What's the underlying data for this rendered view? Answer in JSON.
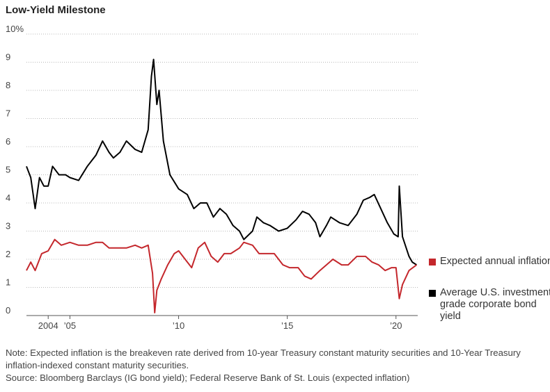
{
  "chart_data": {
    "type": "line",
    "title": "Low-Yield Milestone",
    "y_axis": {
      "ylim": [
        0,
        10
      ],
      "ticks": [
        0,
        1,
        2,
        3,
        4,
        5,
        6,
        7,
        8,
        9,
        10
      ],
      "tick_labels": [
        "0",
        "1",
        "2",
        "3",
        "4",
        "5",
        "6",
        "7",
        "8",
        "9",
        "10%"
      ]
    },
    "x_axis": {
      "xlim": [
        2003.0,
        2021.0
      ],
      "ticks": [
        2004,
        2005,
        2010,
        2015,
        2020
      ],
      "tick_labels": [
        "2004",
        "’05",
        "’10",
        "’15",
        "’20"
      ]
    },
    "grid": "horizontal dotted",
    "legend_position": "right",
    "series": [
      {
        "name": "Average U.S. investment-grade corporate bond yield",
        "color": "#000000",
        "points": [
          [
            2003.0,
            5.3
          ],
          [
            2003.2,
            4.9
          ],
          [
            2003.4,
            3.8
          ],
          [
            2003.6,
            4.9
          ],
          [
            2003.8,
            4.6
          ],
          [
            2004.0,
            4.6
          ],
          [
            2004.2,
            5.3
          ],
          [
            2004.5,
            5.0
          ],
          [
            2004.8,
            5.0
          ],
          [
            2005.0,
            4.9
          ],
          [
            2005.4,
            4.8
          ],
          [
            2005.8,
            5.3
          ],
          [
            2006.2,
            5.7
          ],
          [
            2006.5,
            6.2
          ],
          [
            2006.8,
            5.8
          ],
          [
            2007.0,
            5.6
          ],
          [
            2007.3,
            5.8
          ],
          [
            2007.6,
            6.2
          ],
          [
            2008.0,
            5.9
          ],
          [
            2008.3,
            5.8
          ],
          [
            2008.6,
            6.6
          ],
          [
            2008.75,
            8.5
          ],
          [
            2008.85,
            9.1
          ],
          [
            2009.0,
            7.5
          ],
          [
            2009.1,
            8.0
          ],
          [
            2009.3,
            6.2
          ],
          [
            2009.6,
            5.0
          ],
          [
            2010.0,
            4.5
          ],
          [
            2010.4,
            4.3
          ],
          [
            2010.7,
            3.8
          ],
          [
            2011.0,
            4.0
          ],
          [
            2011.3,
            4.0
          ],
          [
            2011.6,
            3.5
          ],
          [
            2011.9,
            3.8
          ],
          [
            2012.2,
            3.6
          ],
          [
            2012.5,
            3.2
          ],
          [
            2012.8,
            3.0
          ],
          [
            2013.0,
            2.7
          ],
          [
            2013.4,
            3.0
          ],
          [
            2013.6,
            3.5
          ],
          [
            2013.9,
            3.3
          ],
          [
            2014.2,
            3.2
          ],
          [
            2014.6,
            3.0
          ],
          [
            2015.0,
            3.1
          ],
          [
            2015.4,
            3.4
          ],
          [
            2015.7,
            3.7
          ],
          [
            2016.0,
            3.6
          ],
          [
            2016.3,
            3.3
          ],
          [
            2016.5,
            2.8
          ],
          [
            2016.8,
            3.2
          ],
          [
            2017.0,
            3.5
          ],
          [
            2017.4,
            3.3
          ],
          [
            2017.8,
            3.2
          ],
          [
            2018.2,
            3.6
          ],
          [
            2018.5,
            4.1
          ],
          [
            2018.8,
            4.2
          ],
          [
            2019.0,
            4.3
          ],
          [
            2019.3,
            3.8
          ],
          [
            2019.6,
            3.3
          ],
          [
            2019.9,
            2.9
          ],
          [
            2020.1,
            2.8
          ],
          [
            2020.15,
            4.6
          ],
          [
            2020.3,
            2.8
          ],
          [
            2020.6,
            2.1
          ],
          [
            2020.75,
            1.9
          ],
          [
            2020.95,
            1.8
          ]
        ]
      },
      {
        "name": "Expected annual inflation",
        "color": "#c4272c",
        "points": [
          [
            2003.0,
            1.6
          ],
          [
            2003.2,
            1.9
          ],
          [
            2003.4,
            1.6
          ],
          [
            2003.7,
            2.2
          ],
          [
            2004.0,
            2.3
          ],
          [
            2004.3,
            2.7
          ],
          [
            2004.6,
            2.5
          ],
          [
            2005.0,
            2.6
          ],
          [
            2005.4,
            2.5
          ],
          [
            2005.8,
            2.5
          ],
          [
            2006.2,
            2.6
          ],
          [
            2006.5,
            2.6
          ],
          [
            2006.8,
            2.4
          ],
          [
            2007.2,
            2.4
          ],
          [
            2007.6,
            2.4
          ],
          [
            2008.0,
            2.5
          ],
          [
            2008.3,
            2.4
          ],
          [
            2008.6,
            2.5
          ],
          [
            2008.8,
            1.5
          ],
          [
            2008.9,
            0.1
          ],
          [
            2009.0,
            0.9
          ],
          [
            2009.2,
            1.3
          ],
          [
            2009.5,
            1.8
          ],
          [
            2009.8,
            2.2
          ],
          [
            2010.0,
            2.3
          ],
          [
            2010.3,
            2.0
          ],
          [
            2010.6,
            1.7
          ],
          [
            2010.9,
            2.4
          ],
          [
            2011.2,
            2.6
          ],
          [
            2011.5,
            2.1
          ],
          [
            2011.8,
            1.9
          ],
          [
            2012.1,
            2.2
          ],
          [
            2012.4,
            2.2
          ],
          [
            2012.8,
            2.4
          ],
          [
            2013.0,
            2.6
          ],
          [
            2013.4,
            2.5
          ],
          [
            2013.7,
            2.2
          ],
          [
            2014.0,
            2.2
          ],
          [
            2014.4,
            2.2
          ],
          [
            2014.8,
            1.8
          ],
          [
            2015.1,
            1.7
          ],
          [
            2015.5,
            1.7
          ],
          [
            2015.8,
            1.4
          ],
          [
            2016.1,
            1.3
          ],
          [
            2016.5,
            1.6
          ],
          [
            2016.8,
            1.8
          ],
          [
            2017.1,
            2.0
          ],
          [
            2017.5,
            1.8
          ],
          [
            2017.8,
            1.8
          ],
          [
            2018.2,
            2.1
          ],
          [
            2018.6,
            2.1
          ],
          [
            2018.9,
            1.9
          ],
          [
            2019.2,
            1.8
          ],
          [
            2019.5,
            1.6
          ],
          [
            2019.8,
            1.7
          ],
          [
            2020.0,
            1.7
          ],
          [
            2020.15,
            0.6
          ],
          [
            2020.3,
            1.1
          ],
          [
            2020.6,
            1.6
          ],
          [
            2020.95,
            1.8
          ]
        ]
      }
    ]
  },
  "legend": {
    "items": [
      {
        "label": "Expected annual inflation",
        "color": "#c4272c"
      },
      {
        "label": "Average U.S. investment-grade corporate bond yield",
        "color": "#000000"
      }
    ]
  },
  "notes": {
    "note": "Note: Expected inflation is the breakeven rate derived from 10-year Treasury constant maturity securities and 10-Year Treasury inflation-indexed constant maturity securities.",
    "source": "Source: Bloomberg Barclays (IG bond yield); Federal Reserve Bank of St. Louis (expected inflation)"
  }
}
